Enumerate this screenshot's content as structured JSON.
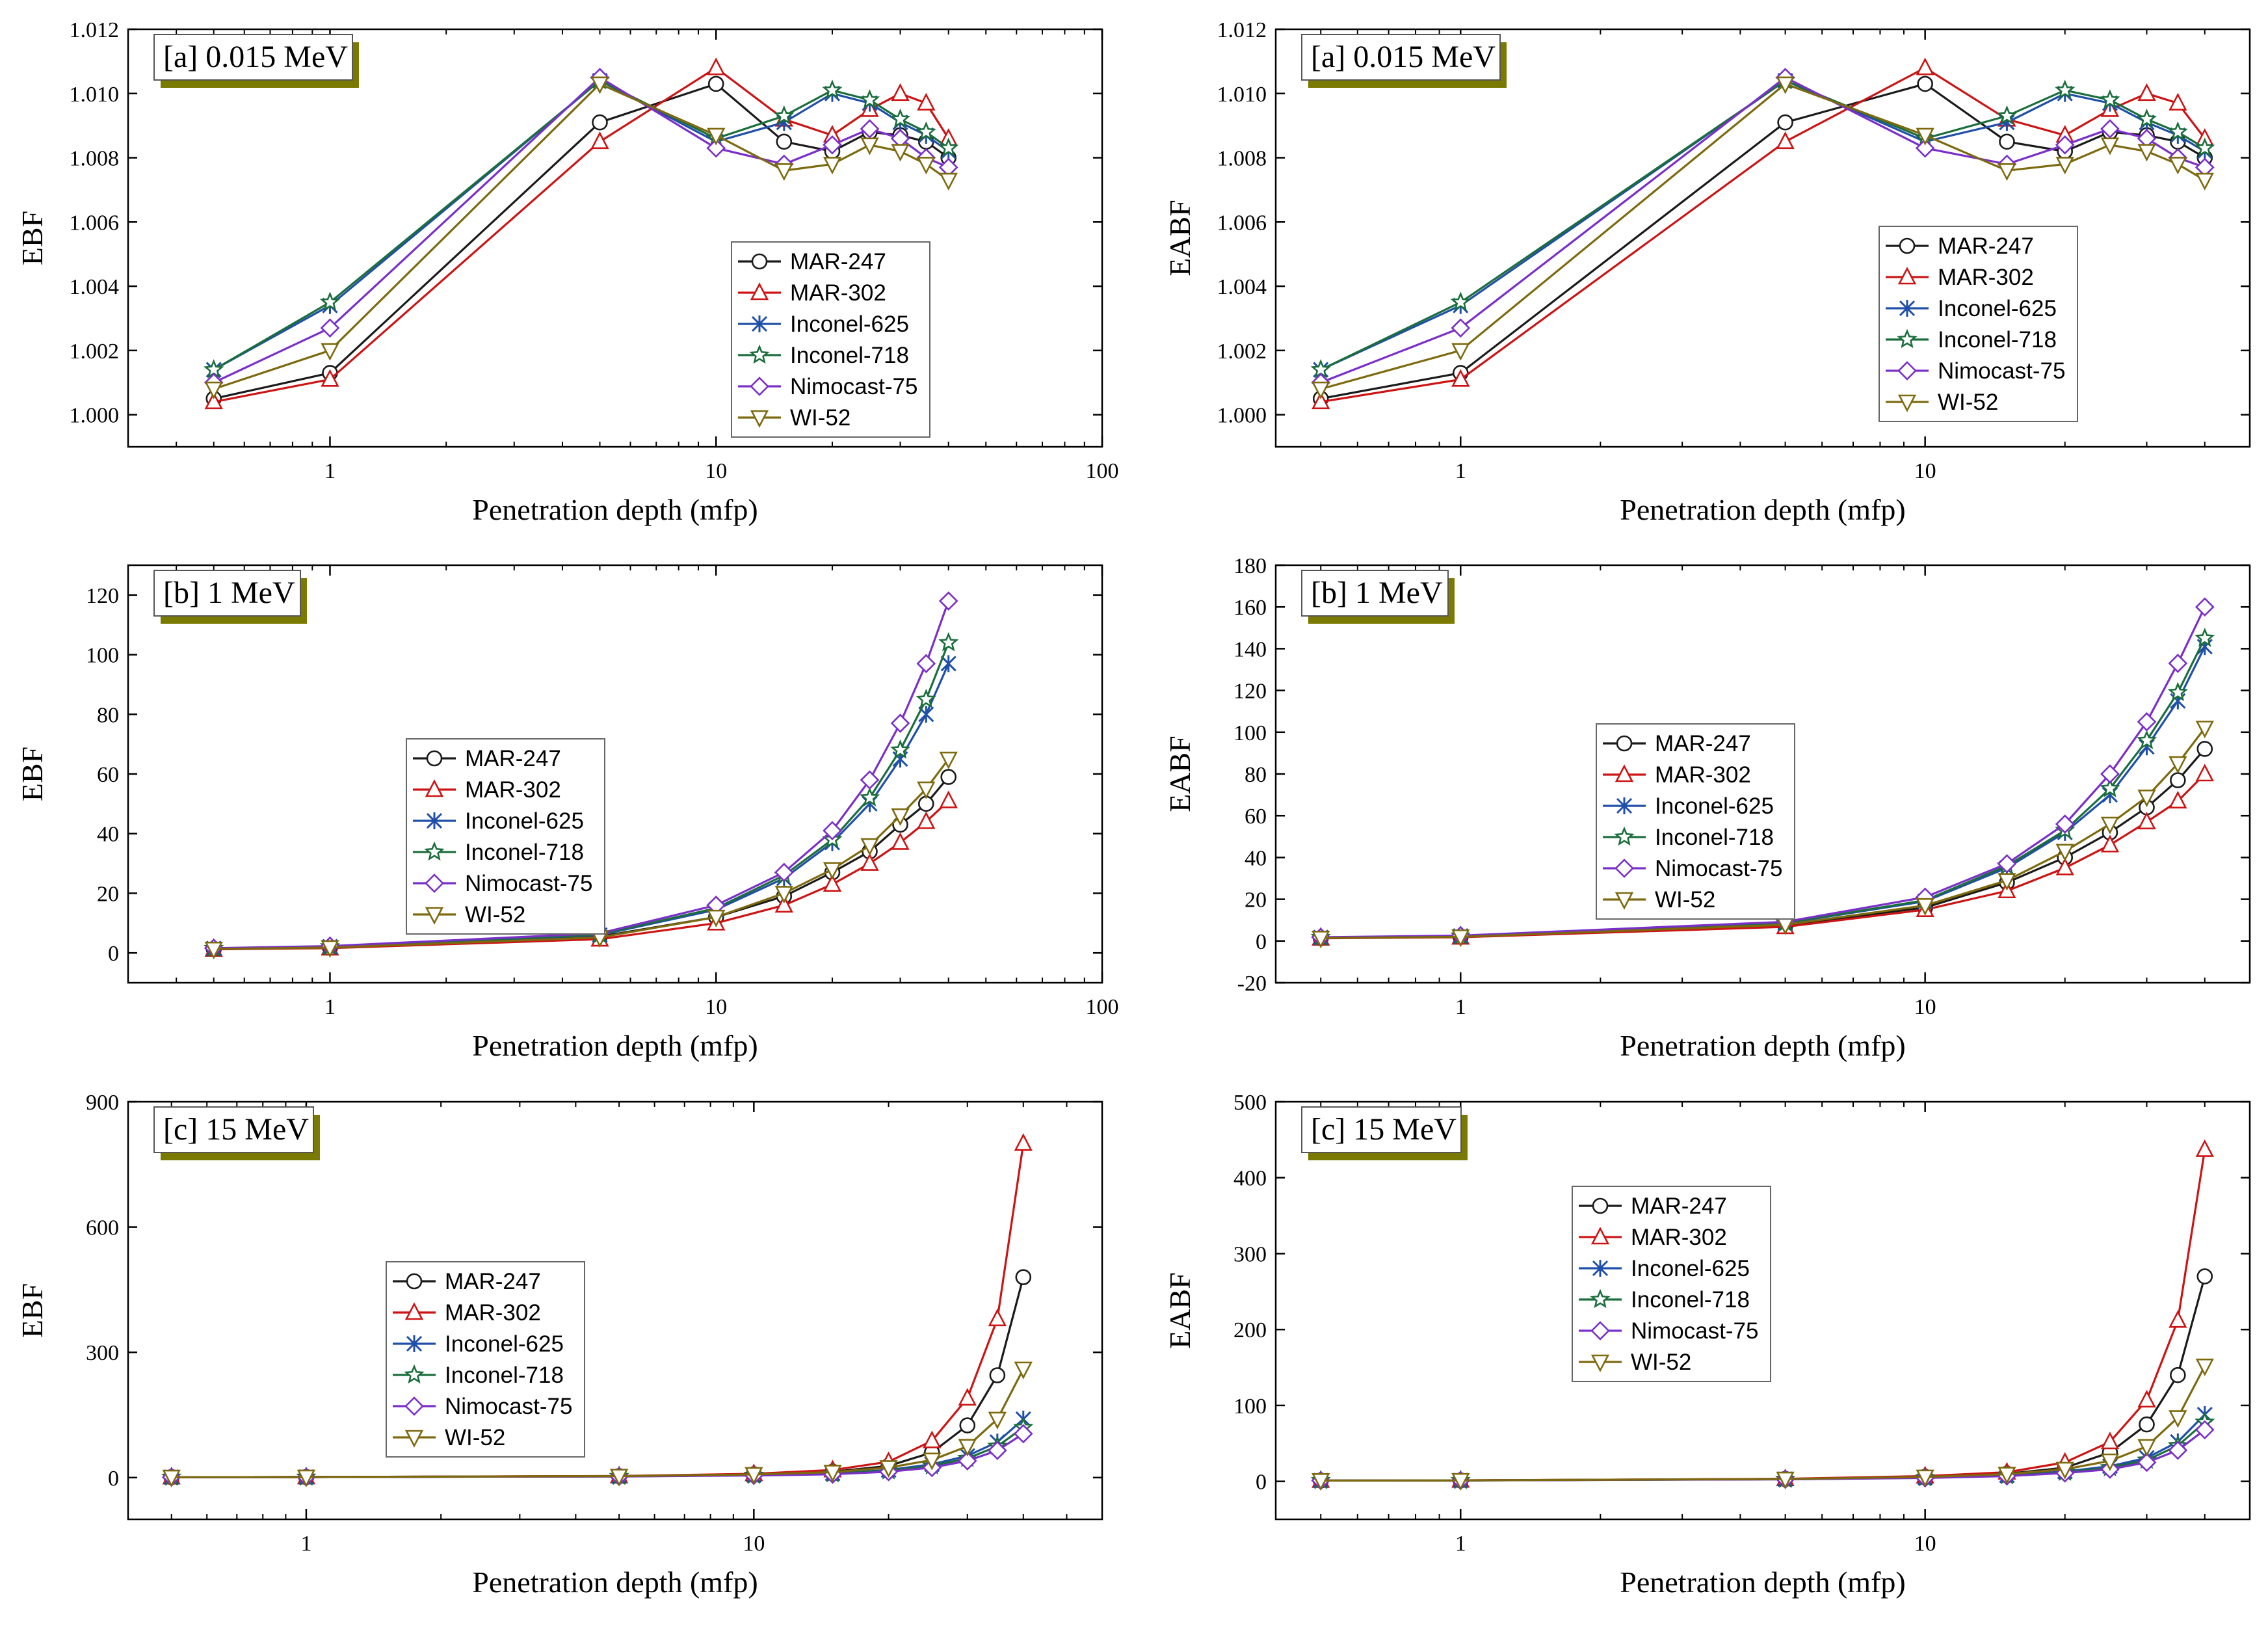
{
  "chart_data": [
    {
      "type": "line",
      "panel": "a-ebf",
      "title": "[a] 0.015 MeV",
      "xlabel": "Penetration depth (mfp)",
      "ylabel": "EBF",
      "xscale": "log",
      "xlim": [
        0.3,
        100
      ],
      "ylim": [
        0.999,
        1.012
      ],
      "xticks": [
        1,
        10,
        100
      ],
      "xtick_labels": [
        "1",
        "10",
        "100"
      ],
      "yticks": [
        1.0,
        1.002,
        1.004,
        1.006,
        1.008,
        1.01,
        1.012
      ],
      "ytick_labels": [
        "1.000",
        "1.002",
        "1.004",
        "1.006",
        "1.008",
        "1.010",
        "1.012"
      ],
      "legend_position": "lower-right",
      "x": [
        0.5,
        1,
        5,
        10,
        15,
        20,
        25,
        30,
        35,
        40
      ],
      "series": [
        {
          "name": "MAR-247",
          "values": [
            1.0005,
            1.0013,
            1.0091,
            1.0103,
            1.0085,
            1.0082,
            1.0088,
            1.0087,
            1.0085,
            1.008
          ]
        },
        {
          "name": "MAR-302",
          "values": [
            1.0004,
            1.0011,
            1.0085,
            1.0108,
            1.0092,
            1.0087,
            1.0095,
            1.01,
            1.0097,
            1.0086
          ]
        },
        {
          "name": "Inconel-625",
          "values": [
            1.0014,
            1.0034,
            1.0104,
            1.0085,
            1.0091,
            1.01,
            1.0097,
            1.0091,
            1.0087,
            1.0082
          ]
        },
        {
          "name": "Inconel-718",
          "values": [
            1.0014,
            1.0035,
            1.0104,
            1.0086,
            1.0093,
            1.0101,
            1.0098,
            1.0092,
            1.0088,
            1.0083
          ]
        },
        {
          "name": "Nimocast-75",
          "values": [
            1.001,
            1.0027,
            1.0105,
            1.0083,
            1.0078,
            1.0084,
            1.0089,
            1.0086,
            1.008,
            1.0077
          ]
        },
        {
          "name": "WI-52",
          "values": [
            1.0008,
            1.002,
            1.0103,
            1.0087,
            1.0076,
            1.0078,
            1.0084,
            1.0082,
            1.0078,
            1.0073
          ]
        }
      ]
    },
    {
      "type": "line",
      "panel": "a-eabf",
      "title": "[a] 0.015 MeV",
      "xlabel": "Penetration depth (mfp)",
      "ylabel": "EABF",
      "xscale": "log",
      "xlim": [
        0.4,
        50
      ],
      "ylim": [
        0.999,
        1.012
      ],
      "xticks": [
        1,
        10
      ],
      "xtick_labels": [
        "1",
        "10"
      ],
      "yticks": [
        1.0,
        1.002,
        1.004,
        1.006,
        1.008,
        1.01,
        1.012
      ],
      "ytick_labels": [
        "1.000",
        "1.002",
        "1.004",
        "1.006",
        "1.008",
        "1.010",
        "1.012"
      ],
      "legend_position": "lower-right",
      "x": [
        0.5,
        1,
        5,
        10,
        15,
        20,
        25,
        30,
        35,
        40
      ],
      "series": [
        {
          "name": "MAR-247",
          "values": [
            1.0005,
            1.0013,
            1.0091,
            1.0103,
            1.0085,
            1.0082,
            1.0088,
            1.0087,
            1.0085,
            1.008
          ]
        },
        {
          "name": "MAR-302",
          "values": [
            1.0004,
            1.0011,
            1.0085,
            1.0108,
            1.0092,
            1.0087,
            1.0095,
            1.01,
            1.0097,
            1.0086
          ]
        },
        {
          "name": "Inconel-625",
          "values": [
            1.0014,
            1.0034,
            1.0104,
            1.0085,
            1.0091,
            1.01,
            1.0097,
            1.0091,
            1.0087,
            1.0082
          ]
        },
        {
          "name": "Inconel-718",
          "values": [
            1.0014,
            1.0035,
            1.0104,
            1.0086,
            1.0093,
            1.0101,
            1.0098,
            1.0092,
            1.0088,
            1.0083
          ]
        },
        {
          "name": "Nimocast-75",
          "values": [
            1.001,
            1.0027,
            1.0105,
            1.0083,
            1.0078,
            1.0084,
            1.0089,
            1.0086,
            1.008,
            1.0077
          ]
        },
        {
          "name": "WI-52",
          "values": [
            1.0008,
            1.002,
            1.0103,
            1.0087,
            1.0076,
            1.0078,
            1.0084,
            1.0082,
            1.0078,
            1.0073
          ]
        }
      ]
    },
    {
      "type": "line",
      "panel": "b-ebf",
      "title": "[b] 1 MeV",
      "xlabel": "Penetration depth (mfp)",
      "ylabel": "EBF",
      "xscale": "log",
      "xlim": [
        0.3,
        100
      ],
      "ylim": [
        -10,
        130
      ],
      "xticks": [
        1,
        10,
        100
      ],
      "xtick_labels": [
        "1",
        "10",
        "100"
      ],
      "yticks": [
        0,
        20,
        40,
        60,
        80,
        100,
        120
      ],
      "ytick_labels": [
        "0",
        "20",
        "40",
        "60",
        "80",
        "100",
        "120"
      ],
      "legend_position": "center-left",
      "x": [
        0.5,
        1,
        5,
        10,
        15,
        20,
        25,
        30,
        35,
        40
      ],
      "series": [
        {
          "name": "MAR-247",
          "values": [
            1.3,
            1.8,
            5.5,
            12,
            19,
            27,
            34,
            43,
            50,
            59
          ]
        },
        {
          "name": "MAR-302",
          "values": [
            1.2,
            1.6,
            4.6,
            10,
            16,
            23,
            30,
            37,
            44,
            51
          ]
        },
        {
          "name": "Inconel-625",
          "values": [
            1.5,
            2.1,
            6.0,
            14.5,
            25,
            37,
            50,
            65,
            80,
            97
          ]
        },
        {
          "name": "Inconel-718",
          "values": [
            1.5,
            2.1,
            6.2,
            15,
            26,
            38,
            52,
            68,
            85,
            104
          ]
        },
        {
          "name": "Nimocast-75",
          "values": [
            1.6,
            2.3,
            6.6,
            16,
            27,
            41,
            58,
            77,
            97,
            118
          ]
        },
        {
          "name": "WI-52",
          "values": [
            1.3,
            1.8,
            5.2,
            12,
            20,
            28,
            36,
            46,
            55,
            65
          ]
        }
      ]
    },
    {
      "type": "line",
      "panel": "b-eabf",
      "title": "[b] 1 MeV",
      "xlabel": "Penetration depth (mfp)",
      "ylabel": "EABF",
      "xscale": "log",
      "xlim": [
        0.4,
        50
      ],
      "ylim": [
        -20,
        180
      ],
      "xticks": [
        1,
        10
      ],
      "xtick_labels": [
        "1",
        "10"
      ],
      "yticks": [
        -20,
        0,
        20,
        40,
        60,
        80,
        100,
        120,
        140,
        160,
        180
      ],
      "ytick_labels": [
        "-20",
        "0",
        "20",
        "40",
        "60",
        "80",
        "100",
        "120",
        "140",
        "160",
        "180"
      ],
      "legend_position": "center",
      "x": [
        0.5,
        1,
        5,
        10,
        15,
        20,
        25,
        30,
        35,
        40
      ],
      "series": [
        {
          "name": "MAR-247",
          "values": [
            1.4,
            2.0,
            7.5,
            16,
            28,
            40,
            52,
            64,
            77,
            92
          ]
        },
        {
          "name": "MAR-302",
          "values": [
            1.3,
            1.8,
            6.8,
            15,
            24,
            35,
            46,
            57,
            67,
            80
          ]
        },
        {
          "name": "Inconel-625",
          "values": [
            1.7,
            2.4,
            8.5,
            19,
            35,
            52,
            70,
            93,
            115,
            141
          ]
        },
        {
          "name": "Inconel-718",
          "values": [
            1.7,
            2.4,
            8.7,
            19.5,
            36,
            53,
            73,
            96,
            119,
            145
          ]
        },
        {
          "name": "Nimocast-75",
          "values": [
            1.8,
            2.6,
            9.2,
            21,
            37,
            56,
            80,
            105,
            133,
            160
          ]
        },
        {
          "name": "WI-52",
          "values": [
            1.4,
            2.0,
            7.8,
            17,
            29,
            43,
            56,
            69,
            85,
            102
          ]
        }
      ]
    },
    {
      "type": "line",
      "panel": "c-ebf",
      "title": "[c] 15 MeV",
      "xlabel": "Penetration depth (mfp)",
      "ylabel": "EBF",
      "xscale": "log",
      "xlim": [
        0.4,
        60
      ],
      "ylim": [
        -100,
        900
      ],
      "xticks": [
        1,
        10
      ],
      "xtick_labels": [
        "1",
        "10"
      ],
      "yticks": [
        0,
        300,
        600,
        900
      ],
      "ytick_labels": [
        "0",
        "300",
        "600",
        "900"
      ],
      "legend_position": "center-left",
      "x": [
        0.5,
        1,
        5,
        10,
        15,
        20,
        25,
        30,
        35,
        40
      ],
      "series": [
        {
          "name": "MAR-247",
          "values": [
            1.1,
            1.3,
            3.5,
            8,
            14,
            28,
            60,
            125,
            245,
            480
          ]
        },
        {
          "name": "MAR-302",
          "values": [
            1.1,
            1.3,
            3.8,
            9,
            18,
            38,
            88,
            190,
            380,
            800
          ]
        },
        {
          "name": "Inconel-625",
          "values": [
            1.1,
            1.2,
            3.0,
            6,
            10,
            18,
            32,
            52,
            85,
            140
          ]
        },
        {
          "name": "Inconel-718",
          "values": [
            1.1,
            1.2,
            2.9,
            5.5,
            9,
            16,
            28,
            46,
            75,
            120
          ]
        },
        {
          "name": "Nimocast-75",
          "values": [
            1.1,
            1.2,
            2.7,
            5,
            8,
            14,
            24,
            40,
            65,
            105
          ]
        },
        {
          "name": "WI-52",
          "values": [
            1.1,
            1.3,
            3.4,
            7.5,
            13,
            24,
            42,
            75,
            140,
            260
          ]
        }
      ]
    },
    {
      "type": "line",
      "panel": "c-eabf",
      "title": "[c] 15 MeV",
      "xlabel": "Penetration depth (mfp)",
      "ylabel": "EABF",
      "xscale": "log",
      "xlim": [
        0.4,
        50
      ],
      "ylim": [
        -50,
        500
      ],
      "xticks": [
        1,
        10
      ],
      "xtick_labels": [
        "1",
        "10"
      ],
      "yticks": [
        0,
        100,
        200,
        300,
        400,
        500
      ],
      "ytick_labels": [
        "0",
        "100",
        "200",
        "300",
        "400",
        "500"
      ],
      "legend_position": "center",
      "x": [
        0.5,
        1,
        5,
        10,
        15,
        20,
        25,
        30,
        35,
        40
      ],
      "series": [
        {
          "name": "MAR-247",
          "values": [
            1.1,
            1.3,
            3.2,
            6,
            10,
            18,
            38,
            75,
            140,
            270
          ]
        },
        {
          "name": "MAR-302",
          "values": [
            1.1,
            1.3,
            3.4,
            7,
            12,
            25,
            52,
            107,
            212,
            437
          ]
        },
        {
          "name": "Inconel-625",
          "values": [
            1.1,
            1.2,
            2.9,
            5,
            8,
            13,
            20,
            31,
            52,
            88
          ]
        },
        {
          "name": "Inconel-718",
          "values": [
            1.1,
            1.2,
            2.8,
            4.8,
            7.5,
            12,
            18,
            28,
            47,
            78
          ]
        },
        {
          "name": "Nimocast-75",
          "values": [
            1.1,
            1.2,
            2.7,
            4.5,
            7,
            11,
            16,
            25,
            41,
            68
          ]
        },
        {
          "name": "WI-52",
          "values": [
            1.1,
            1.3,
            3.1,
            5.8,
            9.5,
            16,
            27,
            46,
            84,
            152
          ]
        }
      ]
    }
  ],
  "styles": {
    "series_colors": {
      "MAR-247": "#1a1a1a",
      "MAR-302": "#cc1414",
      "Inconel-625": "#1f4fa8",
      "Inconel-718": "#1b6e3c",
      "Nimocast-75": "#7b2fc9",
      "WI-52": "#7d6a0f"
    },
    "series_markers": {
      "MAR-247": "circle",
      "MAR-302": "triangle-up",
      "Inconel-625": "asterisk",
      "Inconel-718": "star",
      "Nimocast-75": "diamond",
      "WI-52": "triangle-down"
    },
    "panel_tag_shadow": "#7a7a00"
  }
}
